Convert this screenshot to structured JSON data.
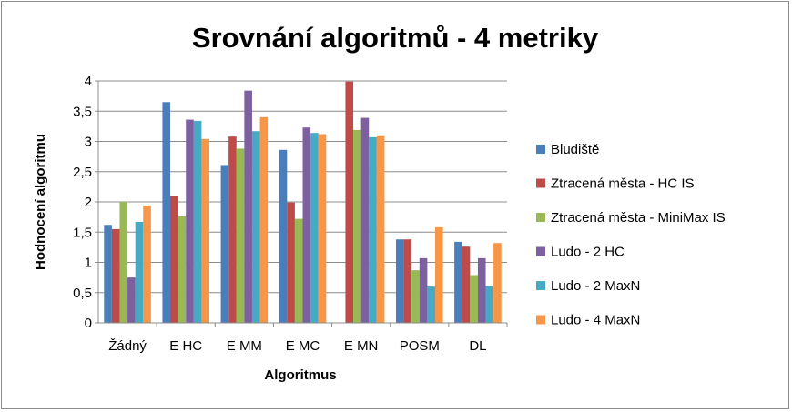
{
  "chart_data": {
    "type": "bar",
    "title": "Srovnání algoritmů - 4 metriky",
    "xlabel": "Algoritmus",
    "ylabel": "Hodnocení algoritmu",
    "ylim": [
      0,
      4
    ],
    "yticks": [
      "0",
      "0,5",
      "1",
      "1,5",
      "2",
      "2,5",
      "3",
      "3,5",
      "4"
    ],
    "grid": true,
    "legend_position": "right",
    "categories": [
      "Žádný",
      "E HC",
      "E MM",
      "E MC",
      "E MN",
      "POSM",
      "DL"
    ],
    "series": [
      {
        "name": "Bludiště",
        "color": "#4a7ebb",
        "values": [
          1.62,
          3.65,
          2.61,
          2.86,
          0,
          1.38,
          1.34
        ]
      },
      {
        "name": "Ztracená města - HC IS",
        "color": "#be4b48",
        "values": [
          1.55,
          2.09,
          3.08,
          1.99,
          3.99,
          1.38,
          1.26
        ]
      },
      {
        "name": "Ztracená města - MiniMax IS",
        "color": "#98b954",
        "values": [
          2.0,
          1.76,
          2.88,
          1.72,
          3.19,
          0.87,
          0.79
        ]
      },
      {
        "name": "Ludo - 2 HC",
        "color": "#7d60a0",
        "values": [
          0.75,
          3.36,
          3.84,
          3.23,
          3.39,
          1.07,
          1.07
        ]
      },
      {
        "name": "Ludo - 2 MaxN",
        "color": "#46aac5",
        "values": [
          1.67,
          3.34,
          3.17,
          3.14,
          3.07,
          0.6,
          0.61
        ]
      },
      {
        "name": "Ludo - 4 MaxN",
        "color": "#f79646",
        "values": [
          1.94,
          3.04,
          3.4,
          3.12,
          3.1,
          1.58,
          1.32
        ]
      }
    ]
  }
}
